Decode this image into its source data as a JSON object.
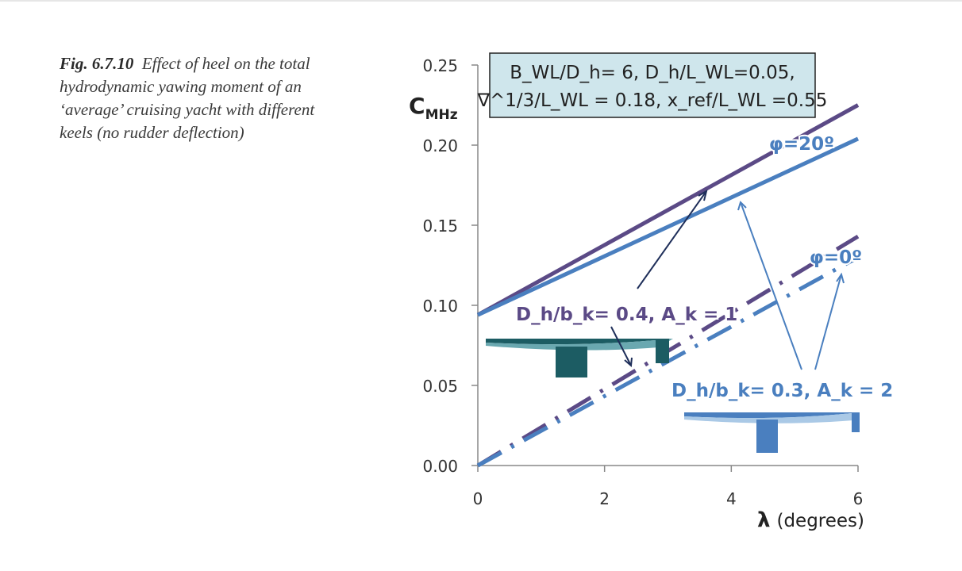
{
  "caption": {
    "fig_label": "Fig. 6.7.10",
    "text": "Effect of heel on the total hydrodynamic yawing moment of an ‘average’ cruising yacht with different keels (no rudder deflection)"
  },
  "chart_data": {
    "type": "line",
    "ylabel": "C",
    "ylabel_sub": "MHz",
    "xlabel": "λ",
    "xlabel_suffix": "(degrees)",
    "xlim": [
      0,
      6
    ],
    "ylim": [
      0,
      0.25
    ],
    "x_ticks": [
      0,
      2,
      4,
      6
    ],
    "y_ticks": [
      "0.00",
      "0.05",
      "0.10",
      "0.15",
      "0.20",
      "0.25"
    ],
    "grid": false,
    "params_box": {
      "line1": "B_WL/D_h= 6,  D_h/L_WL=0.05,",
      "line2": "∇^1/3/L_WL = 0.18, x_ref/L_WL =0.55"
    },
    "heel_labels": [
      "φ=20º",
      "φ=0º"
    ],
    "keel_labels": [
      {
        "name": "D_h/b_k= 0.4, A_k = 1",
        "color": "#5b4a86"
      },
      {
        "name": "D_h/b_k= 0.3, A_k = 2",
        "color": "#4a7fbf"
      }
    ],
    "series": [
      {
        "heel": "φ=20º",
        "keel": "D_h/b_k= 0.4, A_k = 1",
        "style": "solid",
        "color": "#5b4a86",
        "x": [
          0,
          6
        ],
        "y": [
          0.094,
          0.225
        ]
      },
      {
        "heel": "φ=20º",
        "keel": "D_h/b_k= 0.3, A_k = 2",
        "style": "solid",
        "color": "#4a7fbf",
        "x": [
          0,
          6
        ],
        "y": [
          0.094,
          0.204
        ]
      },
      {
        "heel": "φ=0º",
        "keel": "D_h/b_k= 0.4, A_k = 1",
        "style": "dashdot",
        "color": "#5b4a86",
        "x": [
          0,
          6
        ],
        "y": [
          0,
          0.143
        ]
      },
      {
        "heel": "φ=0º",
        "keel": "D_h/b_k= 0.3, A_k = 2",
        "style": "dashdot",
        "color": "#4a7fbf",
        "x": [
          0,
          6
        ],
        "y": [
          0,
          0.13
        ]
      }
    ]
  }
}
